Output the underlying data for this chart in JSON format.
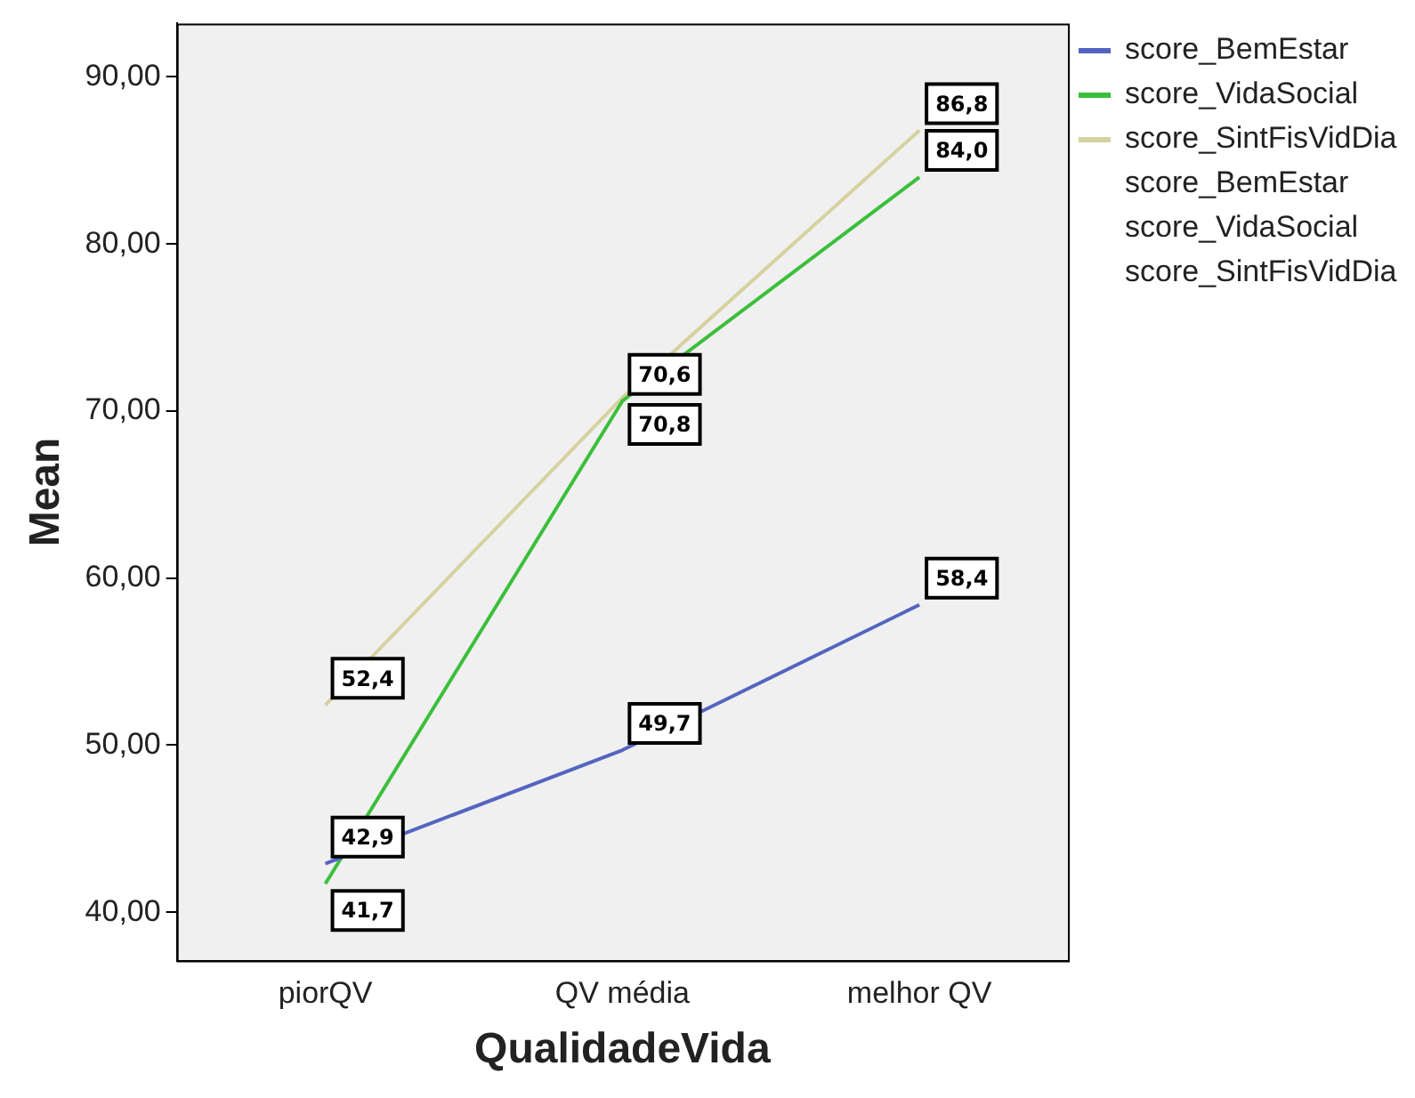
{
  "chart_data": {
    "type": "line",
    "xlabel": "QualidadeVida",
    "ylabel": "Mean",
    "categories": [
      "piorQV",
      "QV média",
      "melhor QV"
    ],
    "series": [
      {
        "name": "score_BemEstar",
        "color": "#5465c0",
        "values": [
          42.9,
          49.7,
          58.4
        ],
        "value_labels": [
          "42,9",
          "49,7",
          "58,4"
        ]
      },
      {
        "name": "score_VidaSocial",
        "color": "#3bbf3b",
        "values": [
          41.7,
          70.6,
          84.0
        ],
        "value_labels": [
          "41,7",
          "70,6",
          "84,0"
        ]
      },
      {
        "name": "score_SintFisVidDia",
        "color": "#d6d2a0",
        "values": [
          52.4,
          70.8,
          86.8
        ],
        "value_labels": [
          "52,4",
          "70,8",
          "86,8"
        ]
      }
    ],
    "ylim": [
      37.1,
      93.2
    ],
    "yticks": [
      {
        "value": 40,
        "label": "40,00"
      },
      {
        "value": 50,
        "label": "50,00"
      },
      {
        "value": 60,
        "label": "60,00"
      },
      {
        "value": 70,
        "label": "70,00"
      },
      {
        "value": 80,
        "label": "80,00"
      },
      {
        "value": 90,
        "label": "90,00"
      }
    ],
    "grid": false,
    "legend": "right",
    "marker": "none",
    "line_style": "solid"
  }
}
